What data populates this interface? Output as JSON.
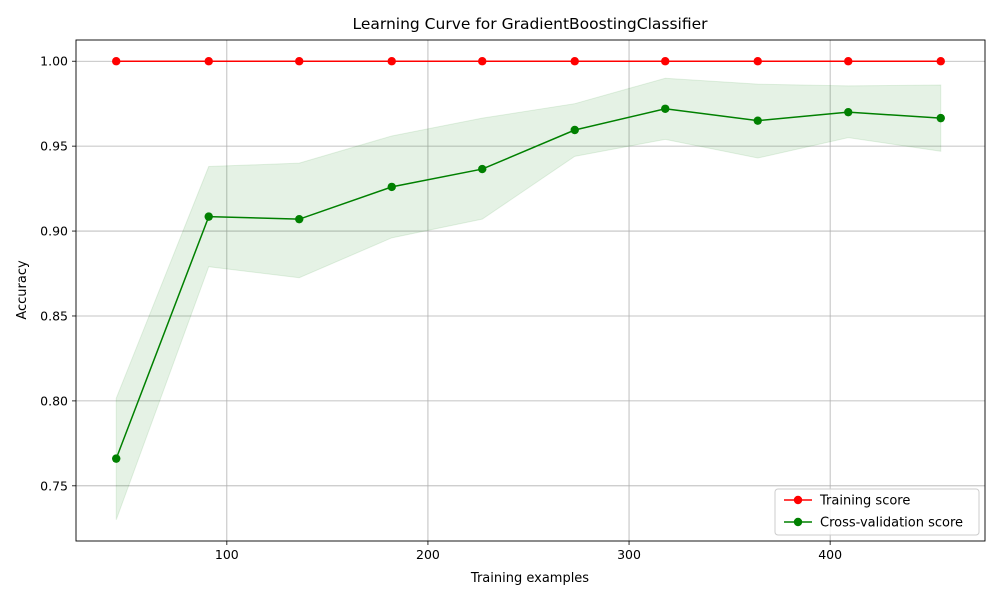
{
  "chart_data": {
    "type": "line",
    "title": "Learning Curve for GradientBoostingClassifier",
    "xlabel": "Training examples",
    "ylabel": "Accuracy",
    "xlim": [
      25,
      477
    ],
    "ylim": [
      0.7175,
      1.0125
    ],
    "xticks": [
      100,
      200,
      300,
      400
    ],
    "xtick_labels": [
      "100",
      "200",
      "300",
      "400"
    ],
    "yticks": [
      0.75,
      0.8,
      0.85,
      0.9,
      0.95,
      1.0
    ],
    "ytick_labels": [
      "0.75",
      "0.80",
      "0.85",
      "0.90",
      "0.95",
      "1.00"
    ],
    "grid": true,
    "legend_position": "lower-right",
    "x": [
      45,
      91,
      136,
      182,
      227,
      273,
      318,
      364,
      409,
      455
    ],
    "series": [
      {
        "name": "Training score",
        "color": "#ff0000",
        "values": [
          1.0,
          1.0,
          1.0,
          1.0,
          1.0,
          1.0,
          1.0,
          1.0,
          1.0,
          1.0
        ]
      },
      {
        "name": "Cross-validation score",
        "color": "#008000",
        "values": [
          0.766,
          0.9085,
          0.907,
          0.926,
          0.9365,
          0.9595,
          0.972,
          0.965,
          0.97,
          0.9665
        ],
        "band_lower": [
          0.73,
          0.879,
          0.8725,
          0.896,
          0.907,
          0.944,
          0.954,
          0.943,
          0.955,
          0.947
        ],
        "band_upper": [
          0.8015,
          0.938,
          0.94,
          0.956,
          0.9665,
          0.975,
          0.99,
          0.9865,
          0.9855,
          0.986
        ],
        "band_color": "#008000"
      }
    ]
  }
}
